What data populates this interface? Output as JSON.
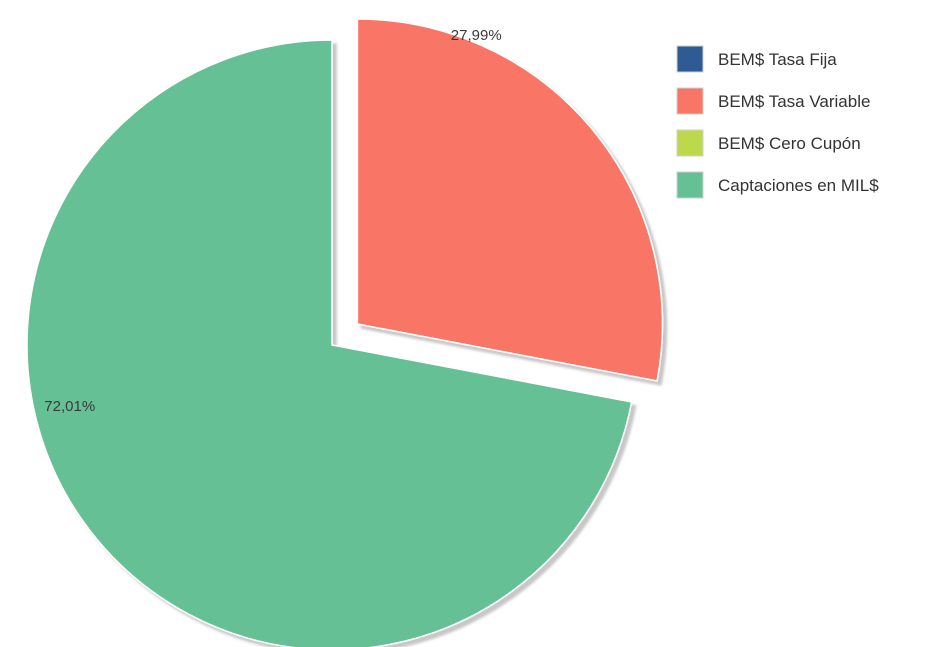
{
  "chart_data": {
    "type": "pie",
    "title": "",
    "legend_position": "top-right",
    "series": [
      {
        "name": "BEM$ Tasa Fija",
        "value": 0,
        "label": "",
        "color": "#2e5b94"
      },
      {
        "name": "BEM$ Tasa Variable",
        "value": 27.99,
        "label": "27,99%",
        "color": "#f97566",
        "exploded": true
      },
      {
        "name": "BEM$ Cero Cupón",
        "value": 0,
        "label": "",
        "color": "#bdd84a"
      },
      {
        "name": "Captaciones en MIL$",
        "value": 72.01,
        "label": "72,01%",
        "color": "#65c096"
      }
    ]
  }
}
